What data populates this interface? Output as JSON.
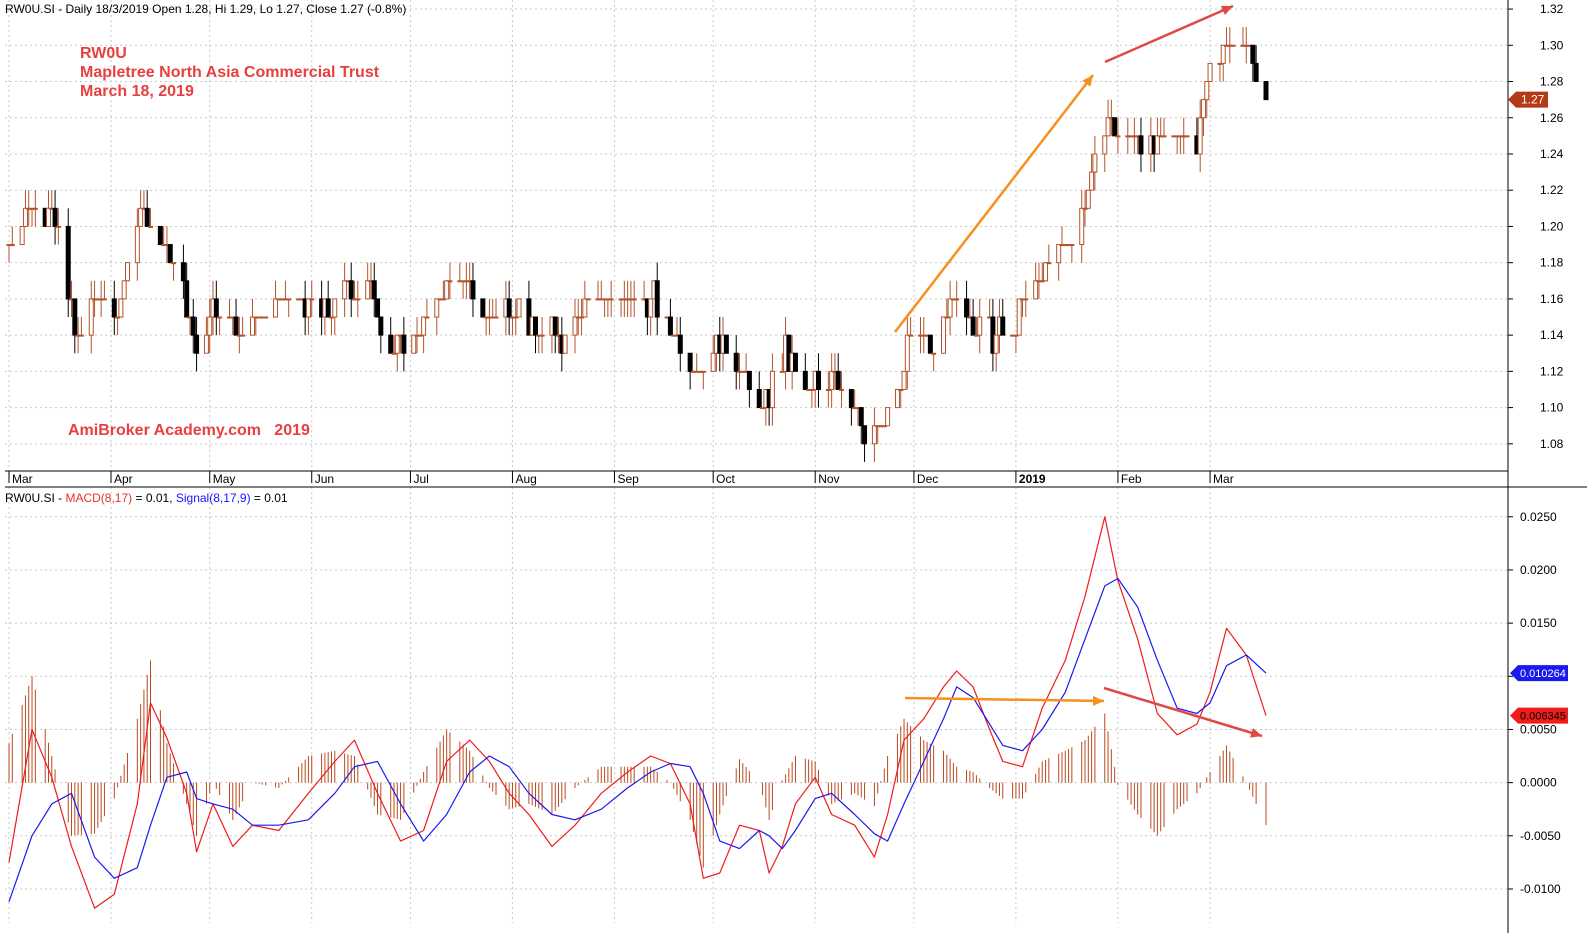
{
  "header": {
    "price_symbol": "RW0U.SI",
    "price_info": " - Daily 18/3/2019 Open 1.28, Hi 1.29, Lo 1.27, Close 1.27 (-0.8%)",
    "ind_symbol": "RW0U.SI",
    "ind_sep": " - ",
    "macd_label": "MACD(8,17)",
    "macd_value": " = 0.01, ",
    "signal_label": "Signal(8,17,9)",
    "signal_value": " = 0.01"
  },
  "annotations": {
    "ticker": "RW0U",
    "company": "Mapletree North Asia Commercial Trust",
    "date": "March 18, 2019",
    "watermark": "AmiBroker Academy.com   2019"
  },
  "colors": {
    "up": "#b3532b",
    "down": "#000000",
    "macd": "#ee1c1c",
    "signal": "#1a1aee",
    "hist": "#b84a20",
    "arrow_orange": "#f6901e",
    "arrow_red": "#e04848"
  },
  "chart_data": [
    {
      "type": "bar",
      "title": "Daily OHLC price bars",
      "xlabel": "",
      "ylabel": "",
      "x_ticks": [
        {
          "label": "Mar",
          "date": "2018-03-01"
        },
        {
          "label": "Apr",
          "date": "2018-04-01"
        },
        {
          "label": "May",
          "date": "2018-05-01"
        },
        {
          "label": "Jun",
          "date": "2018-06-01"
        },
        {
          "label": "Jul",
          "date": "2018-07-01"
        },
        {
          "label": "Aug",
          "date": "2018-08-01"
        },
        {
          "label": "Sep",
          "date": "2018-09-01"
        },
        {
          "label": "Oct",
          "date": "2018-10-01"
        },
        {
          "label": "Nov",
          "date": "2018-11-01"
        },
        {
          "label": "Dec",
          "date": "2018-12-01"
        },
        {
          "label": "2019",
          "date": "2019-01-01"
        },
        {
          "label": "Feb",
          "date": "2019-02-01"
        },
        {
          "label": "Mar",
          "date": "2019-03-01"
        }
      ],
      "ylim": [
        1.065,
        1.325
      ],
      "y_ticks": [
        1.08,
        1.1,
        1.12,
        1.14,
        1.16,
        1.18,
        1.2,
        1.22,
        1.24,
        1.26,
        1.28,
        1.3,
        1.32
      ],
      "last_close_label": "1.27",
      "start_date": "2018-03-01",
      "end_date": "2019-03-18",
      "pivots": [
        [
          "2018-03-01",
          1.19
        ],
        [
          "2018-03-07",
          1.21
        ],
        [
          "2018-03-14",
          1.21
        ],
        [
          "2018-03-19",
          1.16
        ],
        [
          "2018-03-22",
          1.14
        ],
        [
          "2018-03-28",
          1.16
        ],
        [
          "2018-04-03",
          1.15
        ],
        [
          "2018-04-10",
          1.21
        ],
        [
          "2018-04-17",
          1.19
        ],
        [
          "2018-04-24",
          1.16
        ],
        [
          "2018-04-27",
          1.13
        ],
        [
          "2018-05-02",
          1.16
        ],
        [
          "2018-05-09",
          1.14
        ],
        [
          "2018-05-16",
          1.15
        ],
        [
          "2018-05-24",
          1.16
        ],
        [
          "2018-06-05",
          1.15
        ],
        [
          "2018-06-12",
          1.17
        ],
        [
          "2018-06-20",
          1.16
        ],
        [
          "2018-06-26",
          1.13
        ],
        [
          "2018-07-04",
          1.14
        ],
        [
          "2018-07-12",
          1.17
        ],
        [
          "2018-07-19",
          1.17
        ],
        [
          "2018-07-25",
          1.15
        ],
        [
          "2018-08-01",
          1.16
        ],
        [
          "2018-08-08",
          1.14
        ],
        [
          "2018-08-16",
          1.14
        ],
        [
          "2018-08-24",
          1.16
        ],
        [
          "2018-09-06",
          1.16
        ],
        [
          "2018-09-13",
          1.16
        ],
        [
          "2018-09-20",
          1.14
        ],
        [
          "2018-09-27",
          1.12
        ],
        [
          "2018-10-03",
          1.14
        ],
        [
          "2018-10-09",
          1.12
        ],
        [
          "2018-10-16",
          1.1
        ],
        [
          "2018-10-23",
          1.13
        ],
        [
          "2018-10-30",
          1.11
        ],
        [
          "2018-11-07",
          1.12
        ],
        [
          "2018-11-13",
          1.1
        ],
        [
          "2018-11-16",
          1.08
        ],
        [
          "2018-11-21",
          1.09
        ],
        [
          "2018-11-27",
          1.11
        ],
        [
          "2018-11-30",
          1.14
        ],
        [
          "2018-12-06",
          1.13
        ],
        [
          "2018-12-12",
          1.16
        ],
        [
          "2018-12-18",
          1.15
        ],
        [
          "2018-12-24",
          1.14
        ],
        [
          "2018-12-31",
          1.14
        ],
        [
          "2019-01-04",
          1.16
        ],
        [
          "2019-01-10",
          1.18
        ],
        [
          "2019-01-17",
          1.19
        ],
        [
          "2019-01-23",
          1.22
        ],
        [
          "2019-01-28",
          1.26
        ],
        [
          "2019-01-31",
          1.25
        ],
        [
          "2019-02-06",
          1.25
        ],
        [
          "2019-02-12",
          1.24
        ],
        [
          "2019-02-19",
          1.25
        ],
        [
          "2019-02-25",
          1.25
        ],
        [
          "2019-03-01",
          1.29
        ],
        [
          "2019-03-06",
          1.3
        ],
        [
          "2019-03-13",
          1.3
        ],
        [
          "2019-03-18",
          1.27
        ]
      ]
    },
    {
      "type": "line",
      "title": "MACD(8,17) / Signal(8,17,9)",
      "ylim": [
        -0.0132,
        0.0278
      ],
      "y_ticks": [
        -0.01,
        -0.005,
        0.0,
        0.005,
        0.01,
        0.015,
        0.02,
        0.025
      ],
      "y_tick_labels": [
        "-0.0100",
        "-0.0050",
        "0.0000",
        "0.0050",
        "0.0100",
        "0.0150",
        "0.0200",
        "0.0250"
      ],
      "series": [
        {
          "name": "MACD(8,17)",
          "color": "#ee1c1c",
          "last_label": "0.006345",
          "points": [
            [
              "2018-03-01",
              -0.0075
            ],
            [
              "2018-03-08",
              0.005
            ],
            [
              "2018-03-14",
              0.0005
            ],
            [
              "2018-03-20",
              -0.006
            ],
            [
              "2018-03-27",
              -0.0118
            ],
            [
              "2018-04-02",
              -0.0105
            ],
            [
              "2018-04-09",
              -0.002
            ],
            [
              "2018-04-13",
              0.0075
            ],
            [
              "2018-04-18",
              0.0042
            ],
            [
              "2018-04-24",
              -0.001
            ],
            [
              "2018-04-27",
              -0.0065
            ],
            [
              "2018-05-02",
              -0.002
            ],
            [
              "2018-05-08",
              -0.006
            ],
            [
              "2018-05-14",
              -0.004
            ],
            [
              "2018-05-22",
              -0.0045
            ],
            [
              "2018-05-31",
              -0.001
            ],
            [
              "2018-06-08",
              0.002
            ],
            [
              "2018-06-14",
              0.004
            ],
            [
              "2018-06-21",
              -0.001
            ],
            [
              "2018-06-28",
              -0.0055
            ],
            [
              "2018-07-05",
              -0.0045
            ],
            [
              "2018-07-12",
              0.002
            ],
            [
              "2018-07-19",
              0.004
            ],
            [
              "2018-07-25",
              0.002
            ],
            [
              "2018-07-31",
              -0.001
            ],
            [
              "2018-08-06",
              -0.003
            ],
            [
              "2018-08-13",
              -0.006
            ],
            [
              "2018-08-20",
              -0.004
            ],
            [
              "2018-08-28",
              -0.001
            ],
            [
              "2018-09-05",
              0.001
            ],
            [
              "2018-09-12",
              0.0025
            ],
            [
              "2018-09-18",
              0.0018
            ],
            [
              "2018-09-24",
              -0.002
            ],
            [
              "2018-09-28",
              -0.009
            ],
            [
              "2018-10-03",
              -0.0085
            ],
            [
              "2018-10-09",
              -0.004
            ],
            [
              "2018-10-15",
              -0.0045
            ],
            [
              "2018-10-18",
              -0.0085
            ],
            [
              "2018-10-22",
              -0.006
            ],
            [
              "2018-10-26",
              -0.002
            ],
            [
              "2018-11-01",
              0.0005
            ],
            [
              "2018-11-06",
              -0.003
            ],
            [
              "2018-11-13",
              -0.004
            ],
            [
              "2018-11-19",
              -0.007
            ],
            [
              "2018-11-23",
              -0.003
            ],
            [
              "2018-11-28",
              0.004
            ],
            [
              "2018-12-04",
              0.006
            ],
            [
              "2018-12-10",
              0.009
            ],
            [
              "2018-12-14",
              0.0105
            ],
            [
              "2018-12-19",
              0.009
            ],
            [
              "2018-12-24",
              0.005
            ],
            [
              "2018-12-28",
              0.002
            ],
            [
              "2019-01-03",
              0.0015
            ],
            [
              "2019-01-09",
              0.007
            ],
            [
              "2019-01-16",
              0.0115
            ],
            [
              "2019-01-22",
              0.0175
            ],
            [
              "2019-01-28",
              0.025
            ],
            [
              "2019-02-01",
              0.019
            ],
            [
              "2019-02-07",
              0.0135
            ],
            [
              "2019-02-13",
              0.0065
            ],
            [
              "2019-02-19",
              0.0045
            ],
            [
              "2019-02-25",
              0.0055
            ],
            [
              "2019-03-01",
              0.0085
            ],
            [
              "2019-03-06",
              0.0145
            ],
            [
              "2019-03-12",
              0.012
            ],
            [
              "2019-03-18",
              0.0063
            ]
          ]
        },
        {
          "name": "Signal(8,17,9)",
          "color": "#1a1aee",
          "last_label": "0.010264",
          "points": [
            [
              "2018-03-01",
              -0.0112
            ],
            [
              "2018-03-08",
              -0.005
            ],
            [
              "2018-03-14",
              -0.002
            ],
            [
              "2018-03-20",
              -0.001
            ],
            [
              "2018-03-27",
              -0.007
            ],
            [
              "2018-04-02",
              -0.009
            ],
            [
              "2018-04-09",
              -0.008
            ],
            [
              "2018-04-13",
              -0.004
            ],
            [
              "2018-04-18",
              0.0005
            ],
            [
              "2018-04-24",
              0.001
            ],
            [
              "2018-04-27",
              -0.0015
            ],
            [
              "2018-05-02",
              -0.002
            ],
            [
              "2018-05-08",
              -0.0025
            ],
            [
              "2018-05-14",
              -0.004
            ],
            [
              "2018-05-22",
              -0.004
            ],
            [
              "2018-05-31",
              -0.0035
            ],
            [
              "2018-06-08",
              -0.001
            ],
            [
              "2018-06-14",
              0.0015
            ],
            [
              "2018-06-21",
              0.002
            ],
            [
              "2018-06-28",
              -0.002
            ],
            [
              "2018-07-05",
              -0.0055
            ],
            [
              "2018-07-12",
              -0.003
            ],
            [
              "2018-07-19",
              0.001
            ],
            [
              "2018-07-25",
              0.0025
            ],
            [
              "2018-07-31",
              0.0015
            ],
            [
              "2018-08-06",
              -0.001
            ],
            [
              "2018-08-13",
              -0.003
            ],
            [
              "2018-08-20",
              -0.0035
            ],
            [
              "2018-08-28",
              -0.0025
            ],
            [
              "2018-09-05",
              -0.0005
            ],
            [
              "2018-09-12",
              0.001
            ],
            [
              "2018-09-18",
              0.0018
            ],
            [
              "2018-09-24",
              0.0015
            ],
            [
              "2018-09-28",
              -0.001
            ],
            [
              "2018-10-03",
              -0.0055
            ],
            [
              "2018-10-09",
              -0.0062
            ],
            [
              "2018-10-15",
              -0.0045
            ],
            [
              "2018-10-18",
              -0.005
            ],
            [
              "2018-10-22",
              -0.0062
            ],
            [
              "2018-10-26",
              -0.0045
            ],
            [
              "2018-11-01",
              -0.0015
            ],
            [
              "2018-11-06",
              -0.001
            ],
            [
              "2018-11-13",
              -0.003
            ],
            [
              "2018-11-19",
              -0.0048
            ],
            [
              "2018-11-23",
              -0.0055
            ],
            [
              "2018-11-28",
              -0.002
            ],
            [
              "2018-12-04",
              0.002
            ],
            [
              "2018-12-10",
              0.006
            ],
            [
              "2018-12-14",
              0.009
            ],
            [
              "2018-12-19",
              0.008
            ],
            [
              "2018-12-24",
              0.0055
            ],
            [
              "2018-12-28",
              0.0035
            ],
            [
              "2019-01-03",
              0.003
            ],
            [
              "2019-01-09",
              0.005
            ],
            [
              "2019-01-16",
              0.0085
            ],
            [
              "2019-01-22",
              0.0135
            ],
            [
              "2019-01-28",
              0.0185
            ],
            [
              "2019-02-01",
              0.0192
            ],
            [
              "2019-02-07",
              0.0165
            ],
            [
              "2019-02-13",
              0.0115
            ],
            [
              "2019-02-19",
              0.007
            ],
            [
              "2019-02-25",
              0.0065
            ],
            [
              "2019-03-01",
              0.0075
            ],
            [
              "2019-03-06",
              0.011
            ],
            [
              "2019-03-12",
              0.012
            ],
            [
              "2019-03-18",
              0.0103
            ]
          ]
        }
      ],
      "histogram": "MACD minus Signal, drawn as bars around zero"
    }
  ]
}
